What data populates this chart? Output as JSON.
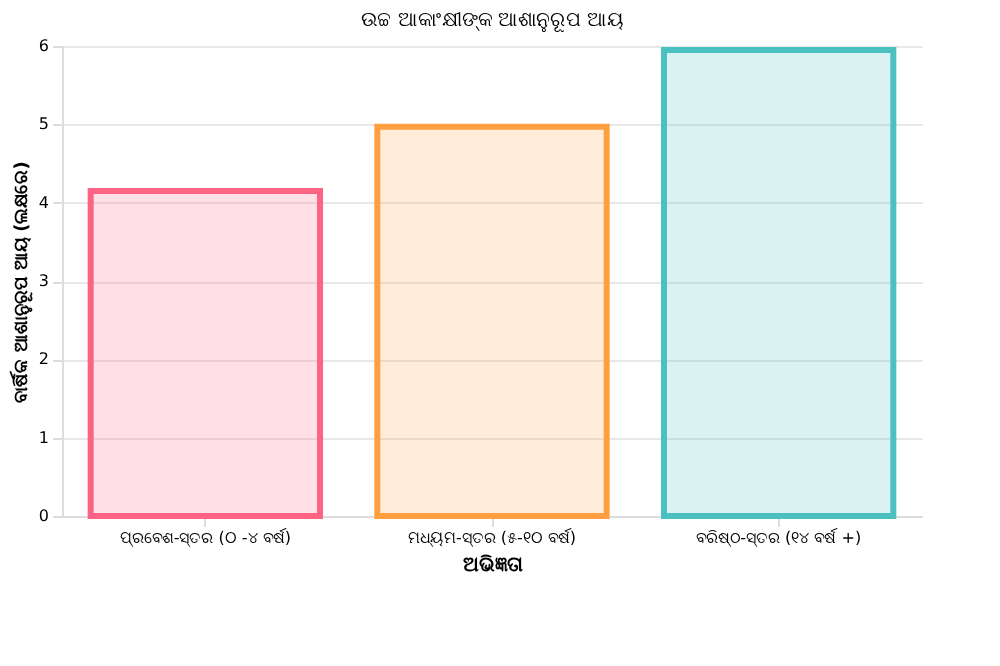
{
  "chart_data": {
    "type": "bar",
    "title": "ଉଚ୍ଚ ଆକାଂକ୍ଷୀଙ୍କ ଆଶାନୁରୂପ ଆୟ",
    "xlabel": "ଅଭିଜ୍ଞତା",
    "ylabel": "ବାର୍ଷିକ ଆଶାନୁରୂପ ଆୟ (ଲକ୍ଷରେ)",
    "categories": [
      "ପ୍ରବେଶ-ସ୍ତର (୦ -୪ ବର୍ଷ)",
      "ମଧ୍ୟମ-ସ୍ତର (୫-୧୦ ବର୍ଷ)",
      "ବରିଷ୍ଠ-ସ୍ତର (୧୪ ବର୍ଷ +)"
    ],
    "values": [
      4.15,
      4.97,
      5.95
    ],
    "colors": [
      "#ff6384",
      "#ff9f40",
      "#4bc0c0"
    ],
    "ylim": [
      0,
      6
    ],
    "yticks": [
      0,
      1,
      2,
      3,
      4,
      5,
      6
    ],
    "grid": "y",
    "legend": false
  }
}
